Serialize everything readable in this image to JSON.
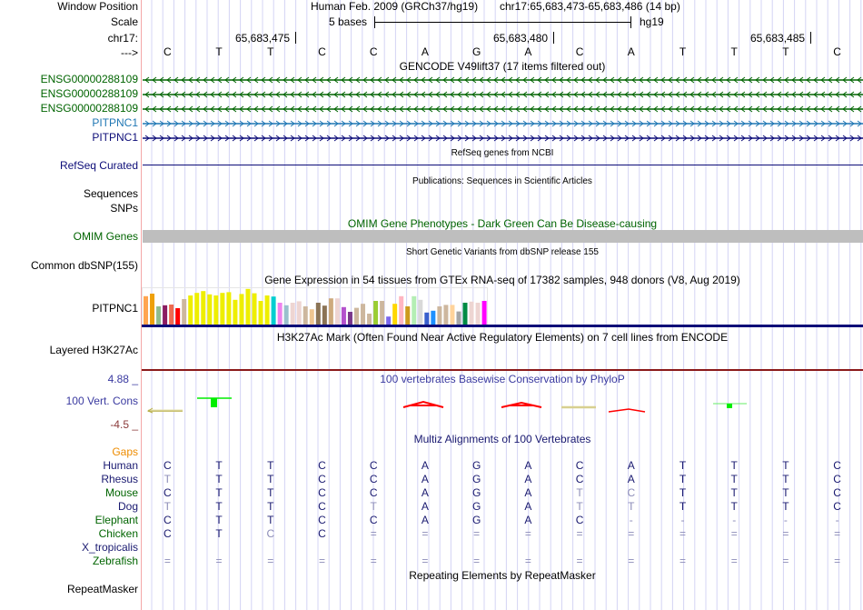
{
  "header": {
    "window_position_label": "Window Position",
    "scale_label": "Scale",
    "chrom_label": "chr17:",
    "strand_label": "--->",
    "assembly_title": "Human Feb. 2009 (GRCh37/hg19)",
    "position": "chr17:65,683,473-65,683,486 (14 bp)",
    "scale_text": "5 bases",
    "scale_assembly": "hg19",
    "coordinate_ticks": [
      "65,683,475",
      "65,683,480",
      "65,683,485"
    ]
  },
  "sequence": [
    "C",
    "T",
    "T",
    "C",
    "C",
    "A",
    "G",
    "A",
    "C",
    "A",
    "T",
    "T",
    "T",
    "C"
  ],
  "tracks": {
    "gencode": {
      "title": "GENCODE V49lift37 (17 items filtered out)",
      "items": [
        {
          "label": "ENSG00000288109",
          "strand": "-",
          "color": "#006400"
        },
        {
          "label": "ENSG00000288109",
          "strand": "-",
          "color": "#006400"
        },
        {
          "label": "ENSG00000288109",
          "strand": "-",
          "color": "#006400"
        },
        {
          "label": "PITPNC1",
          "strand": "+",
          "color": "#1f77b4"
        },
        {
          "label": "PITPNC1",
          "strand": "+",
          "color": "#0c0c78"
        }
      ]
    },
    "refseq": {
      "title": "RefSeq genes from NCBI",
      "label": "RefSeq Curated",
      "color": "#0c0c78"
    },
    "publications": {
      "title": "Publications: Sequences in Scientific Articles",
      "labels": [
        "Sequences",
        "SNPs"
      ]
    },
    "omim": {
      "title": "OMIM Gene Phenotypes - Dark Green Can Be Disease-causing",
      "label": "OMIM Genes",
      "color": "#006400",
      "bar_color": "#bebebe"
    },
    "dbsnp": {
      "title": "Short Genetic Variants from dbSNP release 155",
      "label": "Common dbSNP(155)"
    },
    "gtex": {
      "title": "Gene Expression in 54 tissues from GTEx RNA-seq of 17382 samples, 948 donors (V8, Aug 2019)",
      "label": "PITPNC1",
      "bars": [
        {
          "v": 0.78,
          "c": "#FFA54F"
        },
        {
          "v": 0.85,
          "c": "#EEA00B"
        },
        {
          "v": 0.5,
          "c": "#8FBC8F"
        },
        {
          "v": 0.53,
          "c": "#8B1C62"
        },
        {
          "v": 0.55,
          "c": "#EE6A50"
        },
        {
          "v": 0.45,
          "c": "#FF0000"
        },
        {
          "v": 0.7,
          "c": "#CDB79E"
        },
        {
          "v": 0.8,
          "c": "#EEEE00"
        },
        {
          "v": 0.87,
          "c": "#EEEE00"
        },
        {
          "v": 0.92,
          "c": "#EEEE00"
        },
        {
          "v": 0.83,
          "c": "#EEEE00"
        },
        {
          "v": 0.8,
          "c": "#EEEE00"
        },
        {
          "v": 0.87,
          "c": "#EEEE00"
        },
        {
          "v": 0.89,
          "c": "#EEEE00"
        },
        {
          "v": 0.68,
          "c": "#EEEE00"
        },
        {
          "v": 0.84,
          "c": "#EEEE00"
        },
        {
          "v": 0.98,
          "c": "#EEEE00"
        },
        {
          "v": 0.86,
          "c": "#EEEE00"
        },
        {
          "v": 0.65,
          "c": "#EEEE00"
        },
        {
          "v": 0.8,
          "c": "#EEEE00"
        },
        {
          "v": 0.77,
          "c": "#00CED1"
        },
        {
          "v": 0.6,
          "c": "#EE82EE"
        },
        {
          "v": 0.53,
          "c": "#9AC0CD"
        },
        {
          "v": 0.6,
          "c": "#EED5D2"
        },
        {
          "v": 0.64,
          "c": "#EED5D2"
        },
        {
          "v": 0.5,
          "c": "#CDB79E"
        },
        {
          "v": 0.42,
          "c": "#EEC591"
        },
        {
          "v": 0.6,
          "c": "#8B7355"
        },
        {
          "v": 0.52,
          "c": "#8B7355"
        },
        {
          "v": 0.72,
          "c": "#CDAA7D"
        },
        {
          "v": 0.72,
          "c": "#EED5D2"
        },
        {
          "v": 0.48,
          "c": "#B452CD"
        },
        {
          "v": 0.35,
          "c": "#7A378B"
        },
        {
          "v": 0.46,
          "c": "#CDB79E"
        },
        {
          "v": 0.57,
          "c": "#CDB79E"
        },
        {
          "v": 0.3,
          "c": "#CDB79E"
        },
        {
          "v": 0.65,
          "c": "#9ACD32"
        },
        {
          "v": 0.65,
          "c": "#CDB79E"
        },
        {
          "v": 0.22,
          "c": "#7B68EE"
        },
        {
          "v": 0.57,
          "c": "#FFD700"
        },
        {
          "v": 0.78,
          "c": "#FFB6C1"
        },
        {
          "v": 0.5,
          "c": "#CD9B1D"
        },
        {
          "v": 0.78,
          "c": "#B4EEB4"
        },
        {
          "v": 0.68,
          "c": "#D9D9D9"
        },
        {
          "v": 0.33,
          "c": "#3A5FCD"
        },
        {
          "v": 0.38,
          "c": "#1E90FF"
        },
        {
          "v": 0.5,
          "c": "#CDB79E"
        },
        {
          "v": 0.54,
          "c": "#CDB79E"
        },
        {
          "v": 0.54,
          "c": "#FFD39B"
        },
        {
          "v": 0.36,
          "c": "#A6A6A6"
        },
        {
          "v": 0.6,
          "c": "#008B45"
        },
        {
          "v": 0.63,
          "c": "#EED5D2"
        },
        {
          "v": 0.6,
          "c": "#EED5D2"
        },
        {
          "v": 0.65,
          "c": "#FF00FF"
        }
      ]
    },
    "h3k27ac": {
      "title": "H3K27Ac Mark (Often Found Near Active Regulatory Elements) on 7 cell lines from ENCODE",
      "label": "Layered H3K27Ac"
    },
    "phylop": {
      "title": "100 vertebrates Basewise Conservation by PhyloP",
      "label": "100 Vert. Cons",
      "max": "4.88 _",
      "min": "-4.5 _",
      "max_color": "#3a3aa0",
      "min_color": "#8b3a3a"
    },
    "multiz": {
      "title": "Multiz Alignments of 100 Vertebrates",
      "gaps_label": "Gaps",
      "species": [
        {
          "name": "Human",
          "color": "#191970",
          "seq": [
            "C",
            "T",
            "T",
            "C",
            "C",
            "A",
            "G",
            "A",
            "C",
            "A",
            "T",
            "T",
            "T",
            "C"
          ],
          "faint": []
        },
        {
          "name": "Rhesus",
          "color": "#191970",
          "seq": [
            "T",
            "T",
            "T",
            "C",
            "C",
            "A",
            "G",
            "A",
            "C",
            "A",
            "T",
            "T",
            "T",
            "C"
          ],
          "faint": [
            0
          ]
        },
        {
          "name": "Mouse",
          "color": "#006400",
          "seq": [
            "C",
            "T",
            "T",
            "C",
            "C",
            "A",
            "G",
            "A",
            "T",
            "C",
            "T",
            "T",
            "T",
            "C"
          ],
          "faint": [
            8,
            9
          ]
        },
        {
          "name": "Dog",
          "color": "#191970",
          "seq": [
            "T",
            "T",
            "T",
            "C",
            "T",
            "A",
            "G",
            "A",
            "T",
            "T",
            "T",
            "T",
            "T",
            "C"
          ],
          "faint": [
            0,
            4,
            8,
            9
          ]
        },
        {
          "name": "Elephant",
          "color": "#006400",
          "seq": [
            "C",
            "T",
            "T",
            "C",
            "C",
            "A",
            "G",
            "A",
            "C",
            "-",
            "-",
            "-",
            "-",
            "-"
          ],
          "faint": [
            9,
            10,
            11,
            12,
            13
          ]
        },
        {
          "name": "Chicken",
          "color": "#006400",
          "seq": [
            "C",
            "T",
            "C",
            "C",
            "=",
            "=",
            "=",
            "=",
            "=",
            "=",
            "=",
            "=",
            "=",
            "="
          ],
          "faint": [
            2,
            4,
            5,
            6,
            7,
            8,
            9,
            10,
            11,
            12,
            13
          ]
        },
        {
          "name": "X_tropicalis",
          "color": "#191970",
          "seq": [],
          "faint": []
        },
        {
          "name": "Zebrafish",
          "color": "#006400",
          "seq": [
            "=",
            "=",
            "=",
            "=",
            "=",
            "=",
            "=",
            "=",
            "=",
            "=",
            "=",
            "=",
            "=",
            "="
          ],
          "faint": [
            0,
            1,
            2,
            3,
            4,
            5,
            6,
            7,
            8,
            9,
            10,
            11,
            12,
            13
          ]
        }
      ]
    },
    "repeatmasker": {
      "title": "Repeating Elements by RepeatMasker",
      "label": "RepeatMasker"
    }
  }
}
